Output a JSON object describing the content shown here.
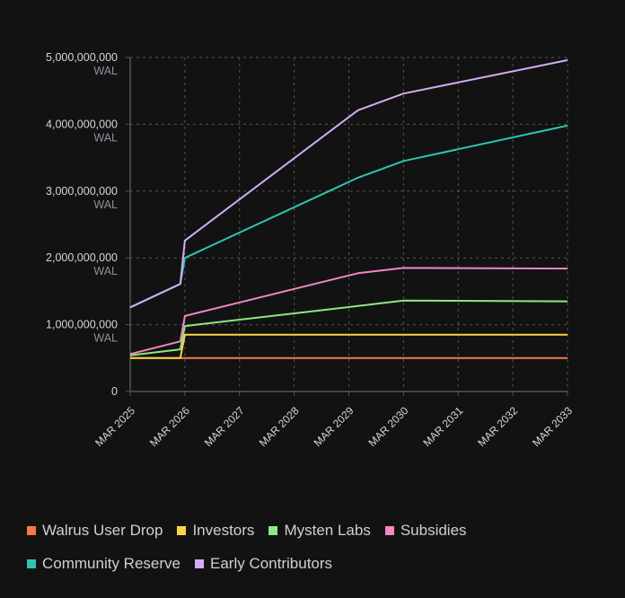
{
  "chart_data": {
    "type": "line",
    "title": "",
    "xlabel": "",
    "ylabel": "",
    "stacked": true,
    "unit": "WAL",
    "ylim": [
      0,
      5000000000
    ],
    "yticks": [
      {
        "value": 0,
        "label": "0",
        "unit": ""
      },
      {
        "value": 1000000000,
        "label": "1,000,000,000",
        "unit": "WAL"
      },
      {
        "value": 2000000000,
        "label": "2,000,000,000",
        "unit": "WAL"
      },
      {
        "value": 3000000000,
        "label": "3,000,000,000",
        "unit": "WAL"
      },
      {
        "value": 4000000000,
        "label": "4,000,000,000",
        "unit": "WAL"
      },
      {
        "value": 5000000000,
        "label": "5,000,000,000",
        "unit": "WAL"
      }
    ],
    "xticks": [
      {
        "date": "2025-03",
        "label": "MAR 2025"
      },
      {
        "date": "2026-03",
        "label": "MAR 2026"
      },
      {
        "date": "2027-03",
        "label": "MAR 2027"
      },
      {
        "date": "2028-03",
        "label": "MAR 2028"
      },
      {
        "date": "2029-03",
        "label": "MAR 2029"
      },
      {
        "date": "2030-03",
        "label": "MAR 2030"
      },
      {
        "date": "2031-03",
        "label": "MAR 2031"
      },
      {
        "date": "2032-03",
        "label": "MAR 2032"
      },
      {
        "date": "2033-03",
        "label": "MAR 2033"
      }
    ],
    "x": [
      "2025-03",
      "2026-02",
      "2026-03",
      "2029-05",
      "2030-03",
      "2033-03"
    ],
    "grid": true,
    "legend": "bottom-left",
    "series": [
      {
        "name": "Walrus User Drop",
        "color": "#f47a4a",
        "values": [
          500000000,
          500000000,
          500000000,
          500000000,
          500000000,
          500000000
        ]
      },
      {
        "name": "Investors",
        "color": "#f8d444",
        "values": [
          500000000,
          500000000,
          850000000,
          850000000,
          850000000,
          850000000
        ]
      },
      {
        "name": "Mysten Labs",
        "color": "#8de883",
        "values": [
          540000000,
          630000000,
          980000000,
          1280000000,
          1360000000,
          1350000000
        ]
      },
      {
        "name": "Subsidies",
        "color": "#f386c3",
        "values": [
          560000000,
          750000000,
          1130000000,
          1770000000,
          1850000000,
          1840000000
        ]
      },
      {
        "name": "Community Reserve",
        "color": "#2fc4b2",
        "values": [
          1260000000,
          1610000000,
          2000000000,
          3200000000,
          3450000000,
          3980000000
        ]
      },
      {
        "name": "Early Contributors",
        "color": "#d2acf6",
        "values": [
          1260000000,
          1610000000,
          2260000000,
          4210000000,
          4460000000,
          4960000000
        ]
      }
    ]
  }
}
